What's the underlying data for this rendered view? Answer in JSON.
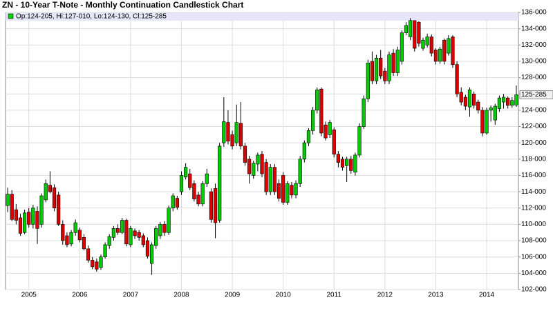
{
  "chart_data": {
    "type": "candlestick",
    "title": "ZN - 10-Year T-Note - Monthly Continuation Candlestick Chart",
    "legend_text": "Op:124-205, Hi:127-010, Lo:124-130, Cl:125-285",
    "last_label": "125-285",
    "up_color": "#00cc00",
    "down_color": "#dd0000",
    "grid": true,
    "categories": [
      null,
      null,
      null,
      null,
      null,
      "2005",
      null,
      null,
      null,
      null,
      null,
      null,
      null,
      null,
      null,
      null,
      null,
      "2006",
      null,
      null,
      null,
      null,
      null,
      null,
      null,
      null,
      null,
      null,
      null,
      "2007",
      null,
      null,
      null,
      null,
      null,
      null,
      null,
      null,
      null,
      null,
      null,
      "2008",
      null,
      null,
      null,
      null,
      null,
      null,
      null,
      null,
      null,
      null,
      null,
      "2009",
      null,
      null,
      null,
      null,
      null,
      null,
      null,
      null,
      null,
      null,
      null,
      "2010",
      null,
      null,
      null,
      null,
      null,
      null,
      null,
      null,
      null,
      null,
      null,
      "2011",
      null,
      null,
      null,
      null,
      null,
      null,
      null,
      null,
      null,
      null,
      null,
      "2012",
      null,
      null,
      null,
      null,
      null,
      null,
      null,
      null,
      null,
      null,
      null,
      "2013",
      null,
      null,
      null,
      null,
      null,
      null,
      null,
      null,
      null,
      null,
      null,
      "2014",
      null,
      null,
      null,
      null,
      null,
      null,
      null
    ],
    "open": [
      112.3,
      113.7,
      111.8,
      110.8,
      109,
      111.5,
      110,
      111.6,
      110,
      113,
      114.8,
      114.5,
      113.6,
      110,
      108.6,
      107.6,
      109,
      109.3,
      108.4,
      107,
      105.6,
      105.4,
      104.7,
      106,
      107.4,
      108.4,
      109.5,
      109,
      110.5,
      107.5,
      109.2,
      109,
      108.6,
      108,
      105.2,
      107.4,
      108.6,
      110,
      109,
      112,
      113.2,
      114,
      115.8,
      116.2,
      115,
      113.6,
      112.5,
      115,
      114,
      114.4,
      110.5,
      120,
      122.5,
      121,
      120,
      122.4,
      119.6,
      118,
      116,
      117.4,
      118.6,
      117.6,
      114,
      117,
      115,
      116,
      112.7,
      114.8,
      113.6,
      115,
      118,
      120,
      121.5,
      124,
      126.6,
      122.2,
      121,
      121.6,
      118.6,
      118,
      117.2,
      118,
      116.4,
      118.5,
      122,
      125.4,
      130,
      127.6,
      130.4,
      128.8,
      127.6,
      131,
      128.6,
      130,
      133.5,
      133,
      135,
      134.8,
      131.6,
      132,
      133,
      131.4,
      130,
      132.6,
      131,
      133,
      129.6,
      126.2,
      125.6,
      124.4,
      126,
      125,
      124,
      121.2,
      124,
      122.8,
      124.2,
      125,
      125.5,
      124.6,
      124.64
    ],
    "high": [
      114.5,
      114.2,
      112.5,
      111.3,
      111.8,
      112,
      112.4,
      112.2,
      113.8,
      115.5,
      116.5,
      114.9,
      114,
      110.5,
      109,
      109.3,
      110.6,
      109.6,
      108.8,
      107.4,
      106,
      105.8,
      106.3,
      107.8,
      108.8,
      109.8,
      110,
      110.8,
      110.7,
      109.8,
      109.5,
      109.3,
      108.9,
      108.4,
      107.8,
      109.8,
      110.3,
      110.4,
      112.3,
      113.8,
      113.5,
      116.5,
      117.5,
      116.8,
      115.4,
      114,
      115.3,
      116.8,
      114.4,
      115,
      120,
      125.6,
      124,
      121.5,
      124.7,
      125,
      120,
      118.4,
      117.8,
      118.8,
      119,
      118,
      117.4,
      117.4,
      115.5,
      116.4,
      115.3,
      115.2,
      115.4,
      118.4,
      120.3,
      121.8,
      124.4,
      126.8,
      126.8,
      122.6,
      122.8,
      121.9,
      119,
      118.3,
      118.3,
      118.4,
      118.8,
      122.4,
      125.8,
      130.2,
      131.2,
      130.8,
      131.4,
      129.2,
      131.2,
      131.5,
      131.8,
      133.8,
      134.8,
      135.3,
      135,
      134.9,
      132.9,
      133.4,
      133.3,
      131.6,
      131.8,
      132.8,
      133.2,
      133.2,
      130,
      126.8,
      125.9,
      126.8,
      126.3,
      125.3,
      124.4,
      124.3,
      124.6,
      124.8,
      125.8,
      126,
      125.7,
      125.6,
      127.03
    ],
    "low": [
      111.5,
      110.4,
      110,
      108.6,
      108.8,
      109.6,
      109.5,
      107.6,
      109.6,
      112.7,
      113.8,
      111.6,
      109.8,
      107.5,
      107.2,
      107.3,
      108.6,
      107.8,
      106.8,
      105.3,
      104.5,
      104.2,
      104.4,
      105.8,
      107,
      108,
      108.7,
      108.8,
      107.3,
      107.2,
      108.2,
      108,
      107.2,
      105.8,
      103.8,
      107,
      108.2,
      108.6,
      108.7,
      111.6,
      111.8,
      113.6,
      115.5,
      114.2,
      112.8,
      112.2,
      112.2,
      114.6,
      110.2,
      108.3,
      110.2,
      119.5,
      119.8,
      119.2,
      119.6,
      119.2,
      117.2,
      115,
      115.6,
      116.5,
      115.8,
      113.6,
      113.6,
      113.6,
      112.8,
      112.4,
      112.4,
      113.2,
      113.2,
      114.6,
      117.6,
      119.6,
      121,
      123.6,
      120.8,
      120.3,
      120.6,
      118.2,
      117,
      116.6,
      115.2,
      116.2,
      116,
      118.2,
      121.7,
      125,
      127.2,
      127.2,
      127.8,
      127.2,
      127.2,
      128.2,
      128.2,
      129.6,
      133.2,
      132.6,
      131.2,
      131.8,
      131.3,
      131.7,
      130.6,
      129.6,
      129.7,
      129.6,
      130.7,
      129.2,
      125.6,
      124.6,
      124,
      123.2,
      124.2,
      123.6,
      120.8,
      121,
      122.6,
      122.2,
      123.8,
      124.2,
      124.2,
      124.3,
      124.41
    ],
    "close": [
      113.7,
      110.6,
      110.5,
      108.9,
      111.4,
      110,
      112,
      109.5,
      113.5,
      115,
      114,
      112,
      110,
      108,
      107.5,
      109,
      110.2,
      108.1,
      107,
      105.6,
      104.8,
      104.5,
      106,
      107.5,
      108.5,
      109.5,
      109,
      110.5,
      107.6,
      109.5,
      108.6,
      108.4,
      107.5,
      106.1,
      107.5,
      109.5,
      110,
      109,
      112,
      113.5,
      112.1,
      116,
      117,
      114.5,
      113.1,
      112.5,
      115,
      116.2,
      110.6,
      110.2,
      119.6,
      122.6,
      120.2,
      119.6,
      122.5,
      119.6,
      117.6,
      116.2,
      117.5,
      118.5,
      116.2,
      114,
      117,
      114,
      113.2,
      112.7,
      115,
      113.6,
      115,
      118,
      120,
      121.5,
      124,
      126.5,
      121.2,
      120.6,
      122.5,
      118.6,
      117.6,
      117,
      118,
      116.6,
      118.5,
      122,
      125.4,
      129.8,
      127.6,
      130.4,
      128.2,
      127.6,
      130.8,
      128.6,
      131.4,
      133.5,
      134.4,
      135,
      131.6,
      132.2,
      132.6,
      133,
      131,
      130,
      131.5,
      130,
      132.8,
      129.6,
      126,
      125,
      124.5,
      126.5,
      124.6,
      124,
      121.2,
      124,
      124.3,
      124.5,
      125.5,
      125.6,
      124.6,
      125.2,
      125.89
    ],
    "ylim": [
      102,
      136
    ],
    "yticks": [
      {
        "value": 102,
        "label": "102-000"
      },
      {
        "value": 104,
        "label": "104-000"
      },
      {
        "value": 106,
        "label": "106-000"
      },
      {
        "value": 108,
        "label": "108-000"
      },
      {
        "value": 110,
        "label": "110-000"
      },
      {
        "value": 112,
        "label": "112-000"
      },
      {
        "value": 114,
        "label": "114-000"
      },
      {
        "value": 116,
        "label": "116-000"
      },
      {
        "value": 118,
        "label": "118-000"
      },
      {
        "value": 120,
        "label": "120-000"
      },
      {
        "value": 122,
        "label": "122-000"
      },
      {
        "value": 124,
        "label": "124-000"
      },
      {
        "value": 126,
        "label": "126-000"
      },
      {
        "value": 128,
        "label": "128-000"
      },
      {
        "value": 130,
        "label": "130-000"
      },
      {
        "value": 132,
        "label": "132-000"
      },
      {
        "value": 134,
        "label": "134-000"
      },
      {
        "value": 136,
        "label": "136-000"
      }
    ]
  }
}
